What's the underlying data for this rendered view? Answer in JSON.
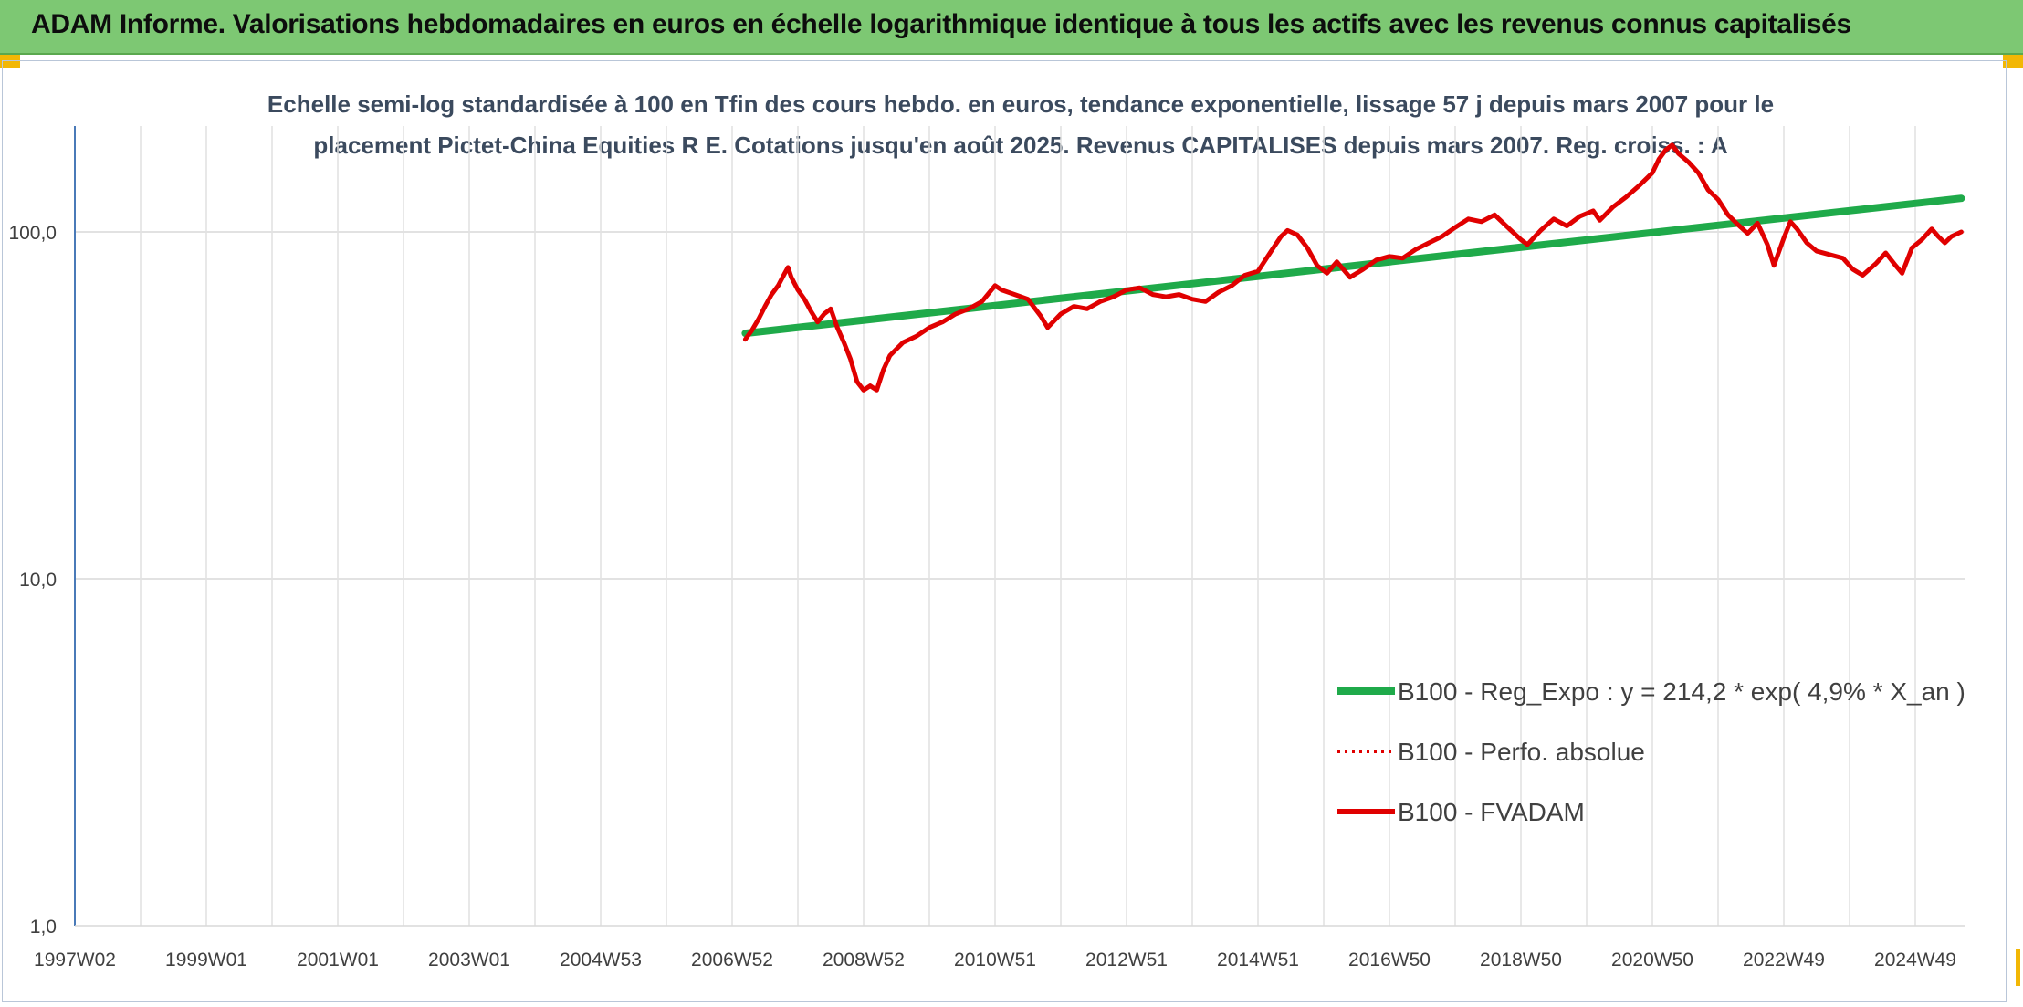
{
  "header": {
    "title": "ADAM Informe. Valorisations hebdomadaires en euros en échelle logarithmique identique à tous les actifs avec les revenus connus capitalisés"
  },
  "colors": {
    "header_bg": "#7dc873",
    "trend": "#1faa4a",
    "series": "#e00000",
    "accent": "#f2b705"
  },
  "chart_data": {
    "type": "line",
    "title_lines": [
      "Echelle semi-log standardisée à 100 en Tfin des cours hebdo. en euros, tendance exponentielle, lissage 57 j depuis mars 2007 pour le",
      "placement Pictet-China Equities R E. Cotations jusqu'en août 2025. Revenus CAPITALISES depuis mars 2007. Reg. croiss. : A"
    ],
    "y_scale": "log",
    "ylim": [
      1,
      200
    ],
    "y_ticks": [
      {
        "value": 100,
        "label": "100,0"
      },
      {
        "value": 10,
        "label": "10,0"
      },
      {
        "value": 1,
        "label": "1,0"
      }
    ],
    "xlim": [
      1997.0,
      2025.75
    ],
    "x_ticks": [
      {
        "t": 1997.0,
        "label": "1997W02"
      },
      {
        "t": 1999.0,
        "label": "1999W01"
      },
      {
        "t": 2001.0,
        "label": "2001W01"
      },
      {
        "t": 2003.0,
        "label": "2003W01"
      },
      {
        "t": 2005.0,
        "label": "2004W53"
      },
      {
        "t": 2007.0,
        "label": "2006W52"
      },
      {
        "t": 2009.0,
        "label": "2008W52"
      },
      {
        "t": 2011.0,
        "label": "2010W51"
      },
      {
        "t": 2013.0,
        "label": "2012W51"
      },
      {
        "t": 2015.0,
        "label": "2014W51"
      },
      {
        "t": 2017.0,
        "label": "2016W50"
      },
      {
        "t": 2019.0,
        "label": "2018W50"
      },
      {
        "t": 2021.0,
        "label": "2020W50"
      },
      {
        "t": 2023.0,
        "label": "2022W49"
      },
      {
        "t": 2025.0,
        "label": "2024W49"
      }
    ],
    "grid": true,
    "legend_position": "bottom-right",
    "series": [
      {
        "name": "B100 - Reg_Expo : y = 214,2 * exp( 4,9% *  X_an )",
        "style": "solid-thick",
        "color": "#1faa4a",
        "points": [
          [
            2007.2,
            51
          ],
          [
            2025.7,
            125
          ]
        ]
      },
      {
        "name": "B100 - Perfo. absolue",
        "style": "dotted",
        "color": "#e00000",
        "points": []
      },
      {
        "name": "B100 - FVADAM",
        "style": "solid",
        "color": "#e00000",
        "points": [
          [
            2007.2,
            49
          ],
          [
            2007.3,
            52
          ],
          [
            2007.4,
            56
          ],
          [
            2007.5,
            61
          ],
          [
            2007.6,
            66
          ],
          [
            2007.7,
            70
          ],
          [
            2007.8,
            76
          ],
          [
            2007.85,
            79
          ],
          [
            2007.9,
            74
          ],
          [
            2008.0,
            68
          ],
          [
            2008.1,
            64
          ],
          [
            2008.2,
            59
          ],
          [
            2008.3,
            55
          ],
          [
            2008.4,
            58
          ],
          [
            2008.5,
            60
          ],
          [
            2008.6,
            53
          ],
          [
            2008.7,
            48
          ],
          [
            2008.8,
            43
          ],
          [
            2008.9,
            37
          ],
          [
            2009.0,
            35
          ],
          [
            2009.1,
            36
          ],
          [
            2009.2,
            35
          ],
          [
            2009.3,
            40
          ],
          [
            2009.4,
            44
          ],
          [
            2009.6,
            48
          ],
          [
            2009.8,
            50
          ],
          [
            2010.0,
            53
          ],
          [
            2010.2,
            55
          ],
          [
            2010.4,
            58
          ],
          [
            2010.6,
            60
          ],
          [
            2010.8,
            63
          ],
          [
            2011.0,
            70
          ],
          [
            2011.1,
            68
          ],
          [
            2011.3,
            66
          ],
          [
            2011.5,
            64
          ],
          [
            2011.7,
            57
          ],
          [
            2011.8,
            53
          ],
          [
            2012.0,
            58
          ],
          [
            2012.2,
            61
          ],
          [
            2012.4,
            60
          ],
          [
            2012.6,
            63
          ],
          [
            2012.8,
            65
          ],
          [
            2013.0,
            68
          ],
          [
            2013.2,
            69
          ],
          [
            2013.4,
            66
          ],
          [
            2013.6,
            65
          ],
          [
            2013.8,
            66
          ],
          [
            2014.0,
            64
          ],
          [
            2014.2,
            63
          ],
          [
            2014.4,
            67
          ],
          [
            2014.6,
            70
          ],
          [
            2014.8,
            75
          ],
          [
            2015.0,
            77
          ],
          [
            2015.2,
            88
          ],
          [
            2015.35,
            97
          ],
          [
            2015.45,
            101
          ],
          [
            2015.6,
            98
          ],
          [
            2015.75,
            90
          ],
          [
            2015.9,
            80
          ],
          [
            2016.05,
            76
          ],
          [
            2016.2,
            82
          ],
          [
            2016.4,
            74
          ],
          [
            2016.6,
            78
          ],
          [
            2016.8,
            83
          ],
          [
            2017.0,
            85
          ],
          [
            2017.2,
            84
          ],
          [
            2017.4,
            89
          ],
          [
            2017.6,
            93
          ],
          [
            2017.8,
            97
          ],
          [
            2018.0,
            103
          ],
          [
            2018.2,
            109
          ],
          [
            2018.4,
            107
          ],
          [
            2018.6,
            112
          ],
          [
            2018.8,
            103
          ],
          [
            2019.0,
            95
          ],
          [
            2019.1,
            92
          ],
          [
            2019.3,
            101
          ],
          [
            2019.5,
            109
          ],
          [
            2019.7,
            104
          ],
          [
            2019.9,
            111
          ],
          [
            2020.1,
            115
          ],
          [
            2020.2,
            108
          ],
          [
            2020.4,
            118
          ],
          [
            2020.6,
            126
          ],
          [
            2020.8,
            136
          ],
          [
            2021.0,
            148
          ],
          [
            2021.1,
            162
          ],
          [
            2021.2,
            172
          ],
          [
            2021.3,
            178
          ],
          [
            2021.4,
            168
          ],
          [
            2021.55,
            159
          ],
          [
            2021.7,
            148
          ],
          [
            2021.85,
            132
          ],
          [
            2022.0,
            124
          ],
          [
            2022.15,
            112
          ],
          [
            2022.3,
            105
          ],
          [
            2022.45,
            99
          ],
          [
            2022.6,
            106
          ],
          [
            2022.75,
            92
          ],
          [
            2022.85,
            80
          ],
          [
            2023.0,
            96
          ],
          [
            2023.1,
            107
          ],
          [
            2023.2,
            102
          ],
          [
            2023.35,
            93
          ],
          [
            2023.5,
            88
          ],
          [
            2023.7,
            86
          ],
          [
            2023.9,
            84
          ],
          [
            2024.05,
            78
          ],
          [
            2024.2,
            75
          ],
          [
            2024.4,
            81
          ],
          [
            2024.55,
            87
          ],
          [
            2024.7,
            80
          ],
          [
            2024.8,
            76
          ],
          [
            2024.95,
            90
          ],
          [
            2025.1,
            95
          ],
          [
            2025.25,
            102
          ],
          [
            2025.35,
            97
          ],
          [
            2025.45,
            93
          ],
          [
            2025.55,
            97
          ],
          [
            2025.7,
            100
          ]
        ]
      }
    ]
  }
}
